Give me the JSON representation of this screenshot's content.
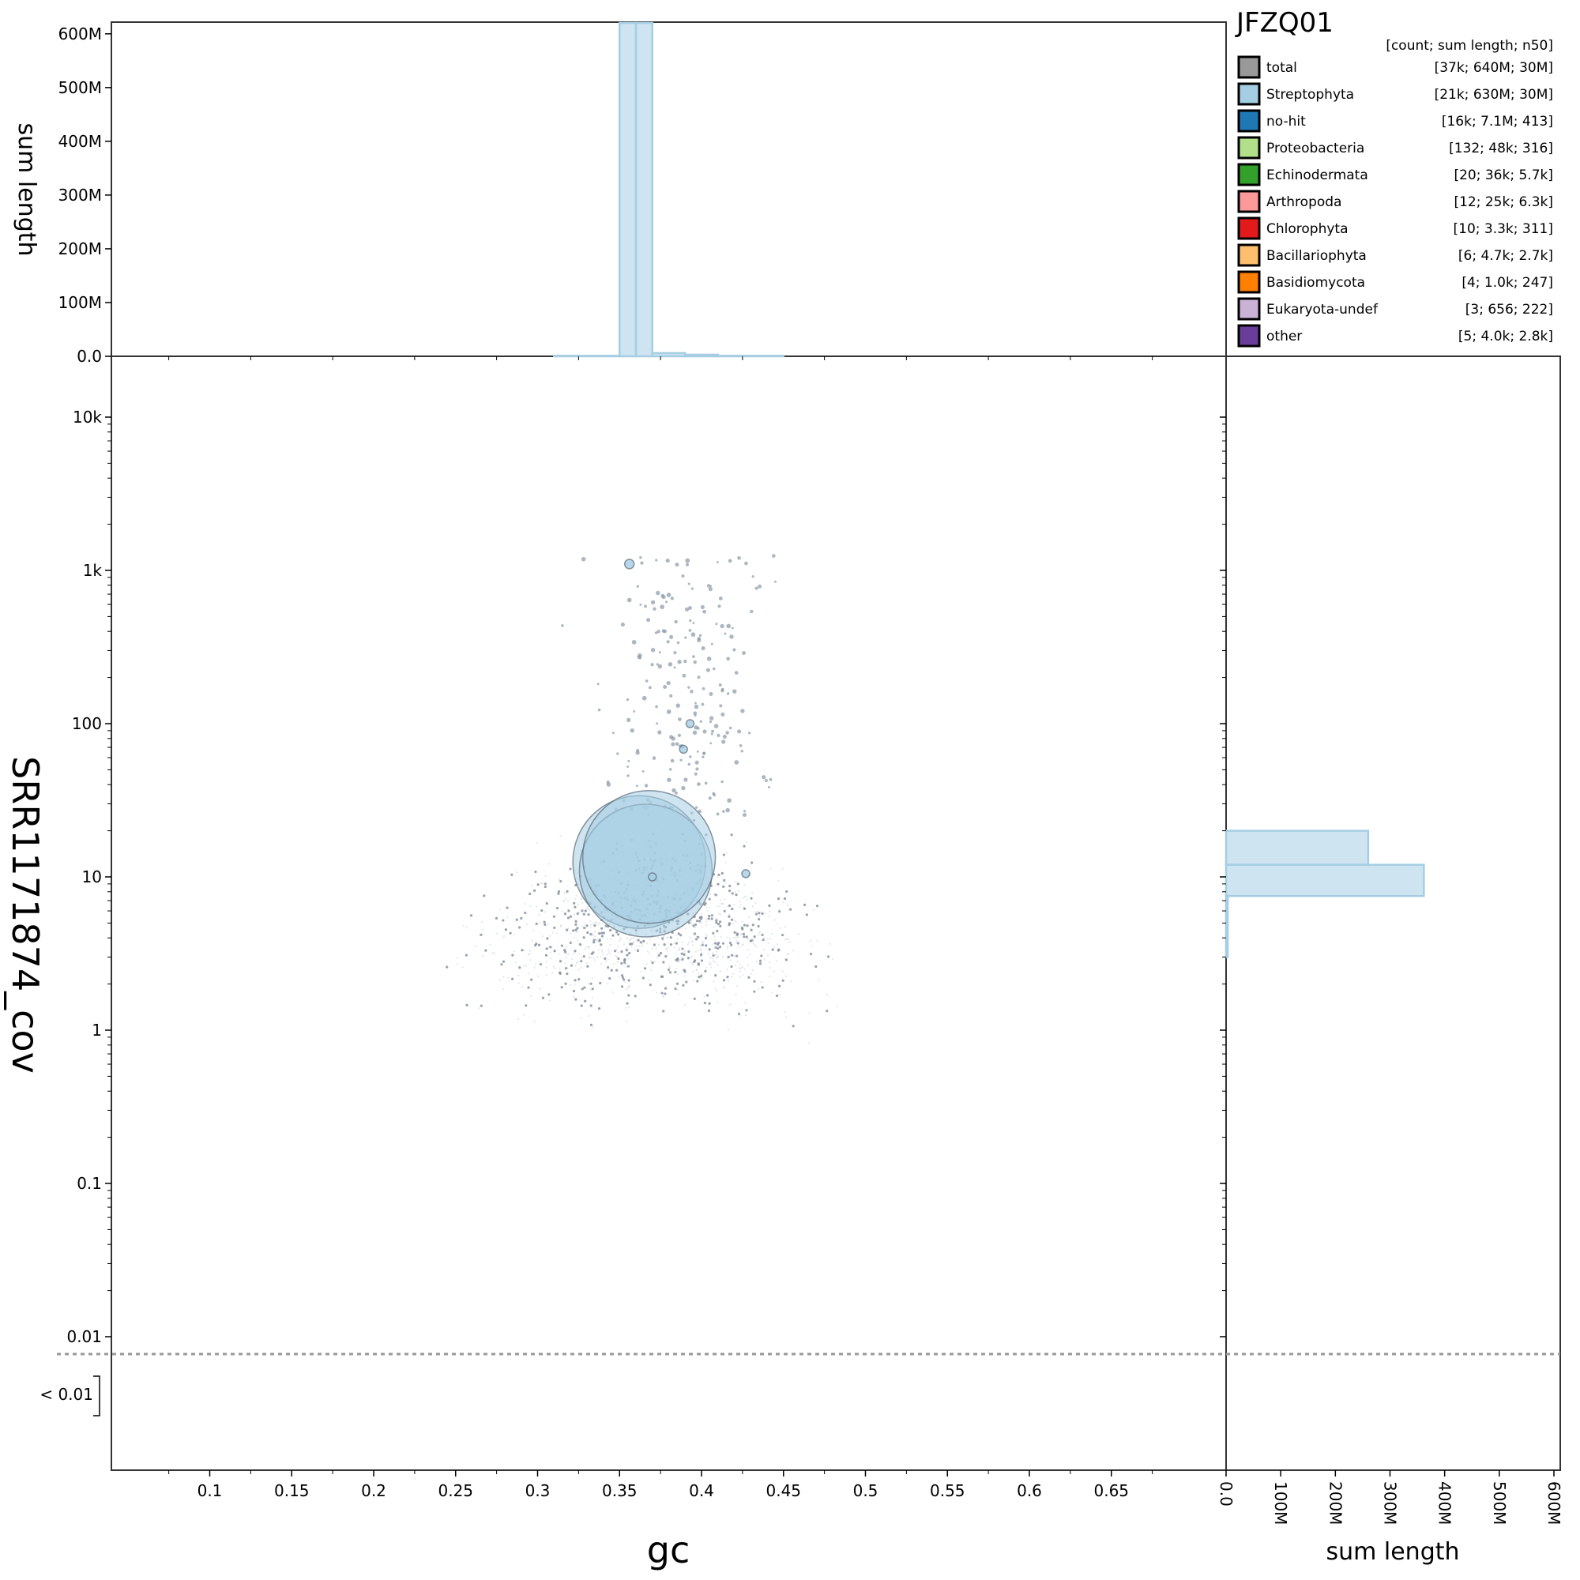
{
  "chart_data": {
    "type": "scatter",
    "title": "JFZQ01",
    "xlabel": "gc",
    "ylabel": "SRR1171874_cov",
    "xlim": [
      0.04,
      0.72
    ],
    "ylim_log": [
      0.005,
      20000
    ],
    "y_scale": "log",
    "x_ticks": [
      "0.1",
      "0.15",
      "0.2",
      "0.25",
      "0.3",
      "0.35",
      "0.4",
      "0.45",
      "0.5",
      "0.55",
      "0.6",
      "0.65"
    ],
    "x_tick_values": [
      0.1,
      0.15,
      0.2,
      0.25,
      0.3,
      0.35,
      0.4,
      0.45,
      0.5,
      0.55,
      0.6,
      0.65
    ],
    "y_ticks": [
      "0.01",
      "0.1",
      "1",
      "10",
      "100",
      "1k",
      "10k"
    ],
    "y_tick_values": [
      0.01,
      0.1,
      1,
      10,
      100,
      1000,
      10000
    ],
    "below_threshold_label": "< 0.01",
    "legend": {
      "header": "[count; sum length; n50]",
      "placement": "top-right",
      "entries": [
        {
          "name": "total",
          "stats": "[37k; 640M; 30M]",
          "color": "#999999"
        },
        {
          "name": "Streptophyta",
          "stats": "[21k; 630M; 30M]",
          "color": "#a6cee3"
        },
        {
          "name": "no-hit",
          "stats": "[16k; 7.1M; 413]",
          "color": "#1f78b4"
        },
        {
          "name": "Proteobacteria",
          "stats": "[132; 48k; 316]",
          "color": "#b2df8a"
        },
        {
          "name": "Echinodermata",
          "stats": "[20; 36k; 5.7k]",
          "color": "#33a02c"
        },
        {
          "name": "Arthropoda",
          "stats": "[12; 25k; 6.3k]",
          "color": "#fb9a99"
        },
        {
          "name": "Chlorophyta",
          "stats": "[10; 3.3k; 311]",
          "color": "#e31a1c"
        },
        {
          "name": "Bacillariophyta",
          "stats": "[6; 4.7k; 2.7k]",
          "color": "#fdbf6f"
        },
        {
          "name": "Basidiomycota",
          "stats": "[4; 1.0k; 247]",
          "color": "#ff7f00"
        },
        {
          "name": "Eukaryota-undef",
          "stats": "[3; 656; 222]",
          "color": "#cab2d6"
        },
        {
          "name": "other",
          "stats": "[5; 4.0k; 2.8k]",
          "color": "#6a3d9a"
        }
      ]
    },
    "major_points": [
      {
        "gc": 0.362,
        "cov": 12.5,
        "size": "large"
      },
      {
        "gc": 0.366,
        "cov": 11.0,
        "size": "large"
      },
      {
        "gc": 0.368,
        "cov": 13.5,
        "size": "large"
      },
      {
        "gc": 0.356,
        "cov": 1100,
        "size": "small"
      },
      {
        "gc": 0.393,
        "cov": 100,
        "size": "small"
      },
      {
        "gc": 0.389,
        "cov": 68,
        "size": "small"
      },
      {
        "gc": 0.427,
        "cov": 10.5,
        "size": "small"
      },
      {
        "gc": 0.37,
        "cov": 10,
        "size": "small"
      }
    ],
    "top_histogram": {
      "label": "sum length",
      "ticks": [
        "0.0",
        "100M",
        "200M",
        "300M",
        "400M",
        "500M",
        "600M"
      ],
      "tick_values": [
        0,
        100,
        200,
        300,
        400,
        500,
        600
      ],
      "unit": "M",
      "bins": [
        {
          "x0": 0.35,
          "x1": 0.36,
          "value": 630
        },
        {
          "x0": 0.36,
          "x1": 0.37,
          "value": 630
        },
        {
          "x0": 0.37,
          "x1": 0.39,
          "value": 6
        },
        {
          "x0": 0.39,
          "x1": 0.41,
          "value": 3
        },
        {
          "x0": 0.41,
          "x1": 0.45,
          "value": 1
        },
        {
          "x0": 0.31,
          "x1": 0.35,
          "value": 1
        }
      ]
    },
    "right_histogram": {
      "label": "sum length",
      "ticks": [
        "0.0",
        "100M",
        "200M",
        "300M",
        "400M",
        "500M",
        "600M"
      ],
      "tick_values": [
        0,
        100,
        200,
        300,
        400,
        500,
        600
      ],
      "unit": "M",
      "bins": [
        {
          "y0": 12,
          "y1": 20,
          "value": 260
        },
        {
          "y0": 7.5,
          "y1": 12,
          "value": 362
        },
        {
          "y0": 3,
          "y1": 7.5,
          "value": 3
        }
      ]
    }
  }
}
